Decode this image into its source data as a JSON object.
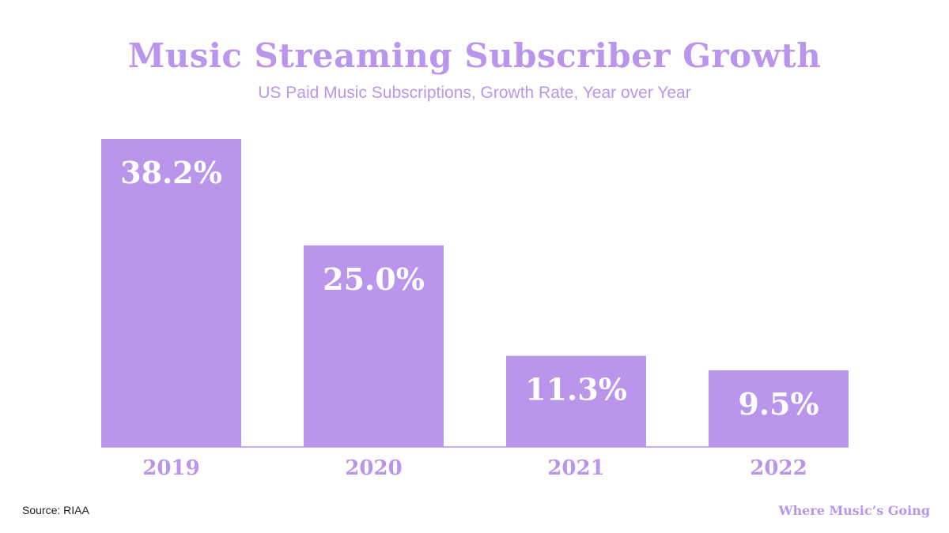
{
  "colors": {
    "accent": "#b996ec",
    "bar_label": "#ffffff",
    "source_text": "#222222"
  },
  "footer": {
    "source": "Source: RIAA",
    "brand": "Where Music’s Going"
  },
  "chart_data": {
    "type": "bar",
    "title": "Music Streaming Subscriber Growth",
    "subtitle": "US Paid Music Subscriptions, Growth Rate, Year over Year",
    "categories": [
      "2019",
      "2020",
      "2021",
      "2022"
    ],
    "values": [
      38.2,
      25.0,
      11.3,
      9.5
    ],
    "value_labels": [
      "38.2%",
      "25.0%",
      "11.3%",
      "9.5%"
    ],
    "ylim": [
      0,
      38.2
    ],
    "xlabel": "",
    "ylabel": "",
    "grid": false
  }
}
